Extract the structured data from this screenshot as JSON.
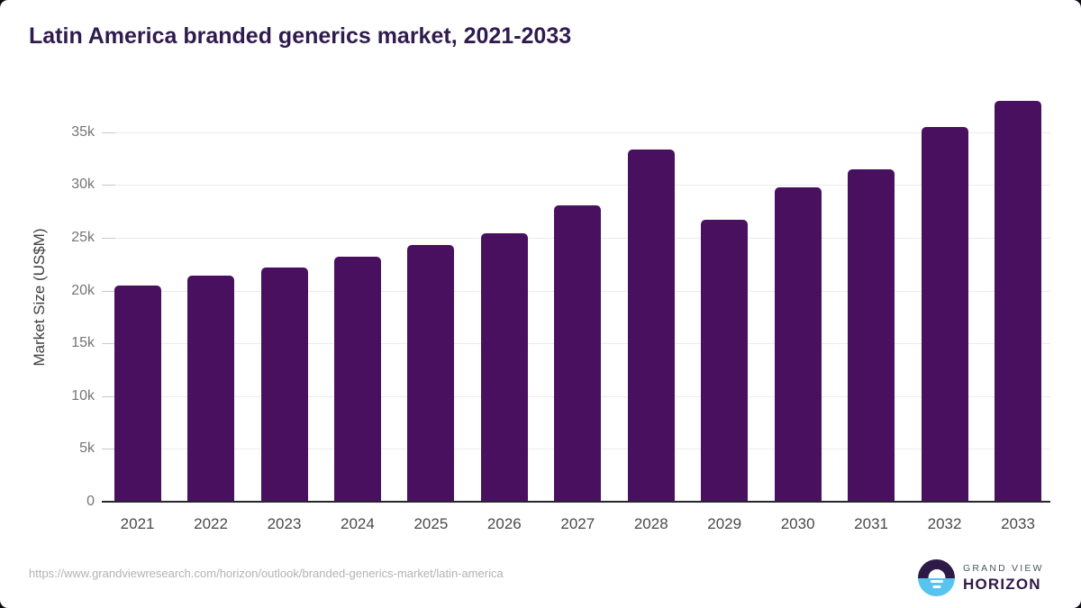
{
  "title": "Latin America branded generics market, 2021-2033",
  "footer": {
    "source_url": "https://www.grandviewresearch.com/horizon/outlook/branded-generics-market/latin-america"
  },
  "logo": {
    "icon": "horizon-sunrise-icon",
    "line1": "GRAND VIEW",
    "line2": "HORIZON"
  },
  "colors": {
    "bar": "#491060",
    "title": "#2f1b4e",
    "axis_line": "#26262e",
    "gridline": "#ebebeb",
    "tick": "#c9c9c9",
    "y_label": "#757575",
    "x_label": "#4a4a4a",
    "axis_title": "#3f3f3f",
    "url_text": "#b3b3b3",
    "logo_purple": "#2e1a47",
    "logo_blue": "#57c4ef"
  },
  "chart_data": {
    "type": "bar",
    "title": "Latin America branded generics market, 2021-2033",
    "categories": [
      "2021",
      "2022",
      "2023",
      "2024",
      "2025",
      "2026",
      "2027",
      "2028",
      "2029",
      "2030",
      "2031",
      "2032",
      "2033"
    ],
    "values": [
      20500,
      21400,
      22200,
      23200,
      24300,
      25400,
      28100,
      33400,
      26700,
      29800,
      31500,
      35500,
      38000
    ],
    "unit": "US$M",
    "xlabel": "",
    "ylabel": "Market Size (US$M)",
    "ylim": [
      0,
      39000
    ],
    "yticks": [
      0,
      5000,
      10000,
      15000,
      20000,
      25000,
      30000,
      35000
    ],
    "ytick_labels": [
      "0",
      "5k",
      "10k",
      "15k",
      "20k",
      "25k",
      "30k",
      "35k"
    ],
    "grid": "horizontal",
    "legend": "none"
  }
}
